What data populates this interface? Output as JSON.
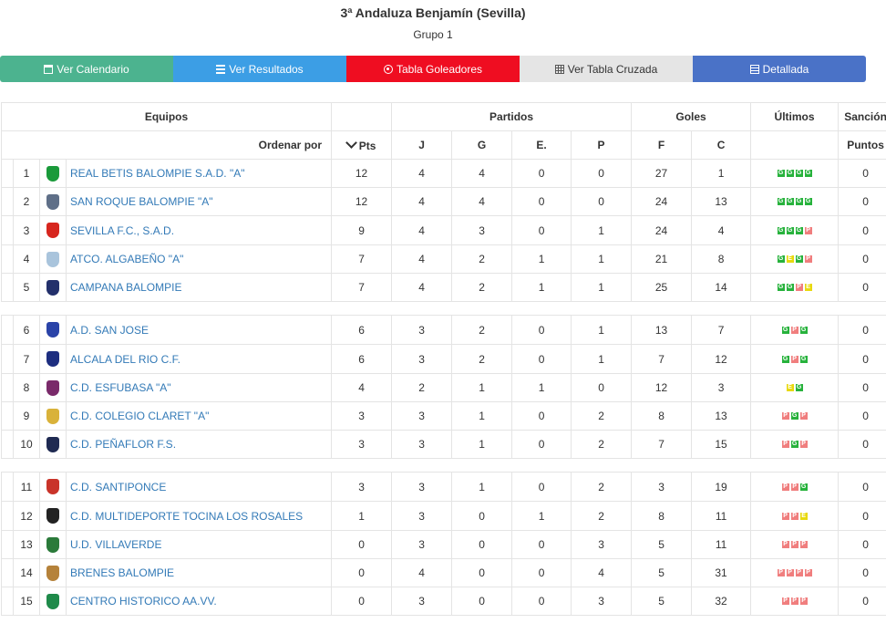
{
  "header": {
    "title": "3ª Andaluza Benjamín (Sevilla)",
    "subtitle": "Grupo 1"
  },
  "buttons": [
    {
      "label": "Ver Calendario",
      "icon": "calendar-icon",
      "color": "#4cb38f"
    },
    {
      "label": "Ver Resultados",
      "icon": "list-icon",
      "color": "#3c9ee5"
    },
    {
      "label": "Tabla Goleadores",
      "icon": "soccer-ball-icon",
      "color": "#ef0d21"
    },
    {
      "label": "Ver Tabla Cruzada",
      "icon": "grid-icon",
      "color": "#e5e5e5"
    },
    {
      "label": "Detallada",
      "icon": "detail-list-icon",
      "color": "#4a72c7"
    }
  ],
  "table": {
    "group_headers": {
      "equipos": "Equipos",
      "partidos": "Partidos",
      "goles": "Goles",
      "ultimos": "Últimos",
      "sancion": "Sanción"
    },
    "sub_headers": {
      "order_by": "Ordenar por",
      "pts": "Pts",
      "j": "J",
      "g": "G",
      "e": "E.",
      "p": "P",
      "f": "F",
      "c": "C",
      "puntos": "Puntos"
    },
    "rows": [
      {
        "pos": "1",
        "team": "REAL BETIS BALOMPIE S.A.D. \"A\"",
        "pts": "12",
        "j": "4",
        "g": "4",
        "e": "0",
        "p": "0",
        "f": "27",
        "c": "1",
        "last": [
          "G",
          "G",
          "G",
          "G"
        ],
        "sancion": "0",
        "logo_color": "#1a9a3a"
      },
      {
        "pos": "2",
        "team": "SAN ROQUE BALOMPIE \"A\"",
        "pts": "12",
        "j": "4",
        "g": "4",
        "e": "0",
        "p": "0",
        "f": "24",
        "c": "13",
        "last": [
          "G",
          "G",
          "G",
          "G"
        ],
        "sancion": "0",
        "logo_color": "#5f6f88"
      },
      {
        "pos": "3",
        "team": "SEVILLA F.C., S.A.D.",
        "pts": "9",
        "j": "4",
        "g": "3",
        "e": "0",
        "p": "1",
        "f": "24",
        "c": "4",
        "last": [
          "G",
          "G",
          "G",
          "P"
        ],
        "sancion": "0",
        "logo_color": "#d7261e"
      },
      {
        "pos": "4",
        "team": "ATCO. ALGABEÑO \"A\"",
        "pts": "7",
        "j": "4",
        "g": "2",
        "e": "1",
        "p": "1",
        "f": "21",
        "c": "8",
        "last": [
          "G",
          "E",
          "G",
          "P"
        ],
        "sancion": "0",
        "logo_color": "#a9c4dc"
      },
      {
        "pos": "5",
        "team": "CAMPANA BALOMPIE",
        "pts": "7",
        "j": "4",
        "g": "2",
        "e": "1",
        "p": "1",
        "f": "25",
        "c": "14",
        "last": [
          "G",
          "G",
          "P",
          "E"
        ],
        "sancion": "0",
        "logo_color": "#23306b"
      },
      {
        "pos": "6",
        "team": "A.D. SAN JOSE",
        "pts": "6",
        "j": "3",
        "g": "2",
        "e": "0",
        "p": "1",
        "f": "13",
        "c": "7",
        "last": [
          "G",
          "P",
          "G"
        ],
        "sancion": "0",
        "logo_color": "#2a43a8"
      },
      {
        "pos": "7",
        "team": "ALCALA DEL RIO C.F.",
        "pts": "6",
        "j": "3",
        "g": "2",
        "e": "0",
        "p": "1",
        "f": "7",
        "c": "12",
        "last": [
          "G",
          "P",
          "G"
        ],
        "sancion": "0",
        "logo_color": "#1d2e80"
      },
      {
        "pos": "8",
        "team": "C.D. ESFUBASA \"A\"",
        "pts": "4",
        "j": "2",
        "g": "1",
        "e": "1",
        "p": "0",
        "f": "12",
        "c": "3",
        "last": [
          "E",
          "G"
        ],
        "sancion": "0",
        "logo_color": "#7a2a6a"
      },
      {
        "pos": "9",
        "team": "C.D. COLEGIO CLARET \"A\"",
        "pts": "3",
        "j": "3",
        "g": "1",
        "e": "0",
        "p": "2",
        "f": "8",
        "c": "13",
        "last": [
          "P",
          "G",
          "P"
        ],
        "sancion": "0",
        "logo_color": "#d9b23a"
      },
      {
        "pos": "10",
        "team": "C.D. PEÑAFLOR F.S.",
        "pts": "3",
        "j": "3",
        "g": "1",
        "e": "0",
        "p": "2",
        "f": "7",
        "c": "15",
        "last": [
          "P",
          "G",
          "P"
        ],
        "sancion": "0",
        "logo_color": "#1f2a52"
      },
      {
        "pos": "11",
        "team": "C.D. SANTIPONCE",
        "pts": "3",
        "j": "3",
        "g": "1",
        "e": "0",
        "p": "2",
        "f": "3",
        "c": "19",
        "last": [
          "P",
          "P",
          "G"
        ],
        "sancion": "0",
        "logo_color": "#c9342a"
      },
      {
        "pos": "12",
        "team": "C.D. MULTIDEPORTE TOCINA LOS ROSALES",
        "pts": "1",
        "j": "3",
        "g": "0",
        "e": "1",
        "p": "2",
        "f": "8",
        "c": "11",
        "last": [
          "P",
          "P",
          "E"
        ],
        "sancion": "0",
        "logo_color": "#222222"
      },
      {
        "pos": "13",
        "team": "U.D. VILLAVERDE",
        "pts": "0",
        "j": "3",
        "g": "0",
        "e": "0",
        "p": "3",
        "f": "5",
        "c": "11",
        "last": [
          "P",
          "P",
          "P"
        ],
        "sancion": "0",
        "logo_color": "#2b7a3a"
      },
      {
        "pos": "14",
        "team": "BRENES BALOMPIE",
        "pts": "0",
        "j": "4",
        "g": "0",
        "e": "0",
        "p": "4",
        "f": "5",
        "c": "31",
        "last": [
          "P",
          "P",
          "P",
          "P"
        ],
        "sancion": "0",
        "logo_color": "#b5823a"
      },
      {
        "pos": "15",
        "team": "CENTRO HISTORICO AA.VV.",
        "pts": "0",
        "j": "3",
        "g": "0",
        "e": "0",
        "p": "3",
        "f": "5",
        "c": "32",
        "last": [
          "P",
          "P",
          "P"
        ],
        "sancion": "0",
        "logo_color": "#1f8a4a"
      }
    ]
  }
}
